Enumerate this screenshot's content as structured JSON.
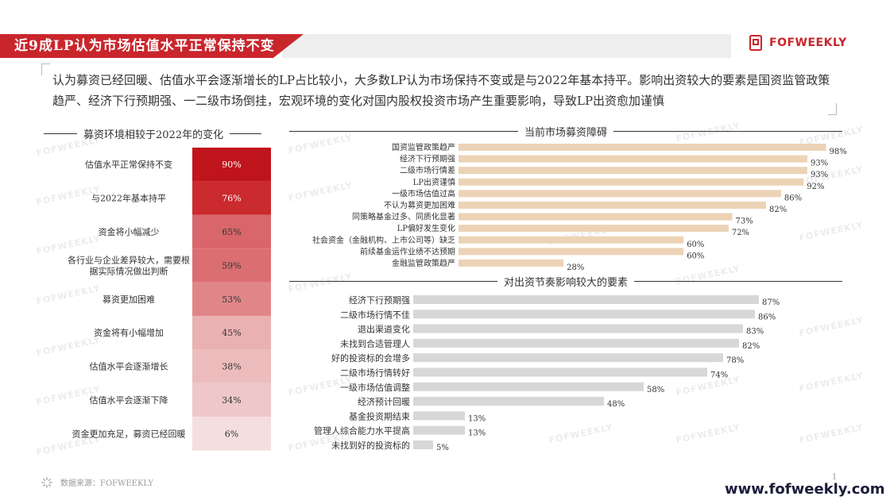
{
  "header": {
    "title": "近9成LP认为市场估值水平正常保持不变",
    "logo_text": "FOFWEEKLY"
  },
  "summary": "认为募资已经回暖、估值水平会逐渐增长的LP占比较小，大多数LP认为市场保持不变或是与2022年基本持平。影响出资较大的要素是国资监管政策趋严、经济下行预期强、一二级市场倒挂，宏观环境的变化对国内股权投资市场产生重要影响，导致LP出资愈加谨慎",
  "watermark": "FOFWEEKLY",
  "footer": {
    "source": "数据来源：FOFWEEKLY",
    "website": "www.fofweekly.com",
    "page": "1"
  },
  "colors": {
    "accent": "#c9262c",
    "peach": "#ecd3b6",
    "grey_bar": "#d7d7d7",
    "heat": [
      "#c0141d",
      "#cb2a2e",
      "#d9666a",
      "#db6e71",
      "#e08688",
      "#eab1b2",
      "#ecbcbd",
      "#eec7c8",
      "#f5dede"
    ]
  },
  "chart_data": [
    {
      "type": "table",
      "title": "募资环境相较于2022年的变化",
      "categories": [
        "估值水平正常保持不变",
        "与2022年基本持平",
        "资金将小幅减少",
        "各行业与企业差异较大，需要根据实际情况做出判断",
        "募资更加困难",
        "资金将有小幅增加",
        "估值水平会逐渐增长",
        "估值水平会逐渐下降",
        "资金更加充足，募资已经回暖"
      ],
      "values": [
        90,
        76,
        65,
        59,
        53,
        45,
        38,
        34,
        6
      ],
      "labels": [
        "90%",
        "76%",
        "65%",
        "59%",
        "53%",
        "45%",
        "38%",
        "34%",
        "6%"
      ]
    },
    {
      "type": "bar",
      "title": "当前市场募资障碍",
      "categories": [
        "国资监管政策趋严",
        "经济下行预期强",
        "二级市场行情差",
        "LP出资谨慎",
        "一级市场估值过高",
        "不认为募资更加困难",
        "同策略基金过多、同质化显著",
        "LP偏好发生变化",
        "社会资金（金融机构、上市公司等）缺乏",
        "前续基金运作业绩不达预期",
        "金融监管政策趋严"
      ],
      "values": [
        98,
        93,
        93,
        92,
        86,
        82,
        73,
        72,
        60,
        60,
        28
      ],
      "labels": [
        "98%",
        "93%",
        "93%",
        "92%",
        "86%",
        "82%",
        "73%",
        "72%",
        "60%",
        "60%",
        "28%"
      ]
    },
    {
      "type": "bar",
      "title": "对出资节奏影响较大的要素",
      "categories": [
        "经济下行预期强",
        "二级市场行情不佳",
        "退出渠道变化",
        "未找到合适管理人",
        "好的投资标的会增多",
        "二级市场行情转好",
        "一级市场估值调整",
        "经济预计回暖",
        "基金投资期结束",
        "管理人综合能力水平提高",
        "未找到好的投资标的"
      ],
      "values": [
        87,
        86,
        83,
        82,
        78,
        74,
        58,
        48,
        13,
        13,
        5
      ],
      "labels": [
        "87%",
        "86%",
        "83%",
        "82%",
        "78%",
        "74%",
        "58%",
        "48%",
        "13%",
        "13%",
        "5%"
      ]
    }
  ]
}
